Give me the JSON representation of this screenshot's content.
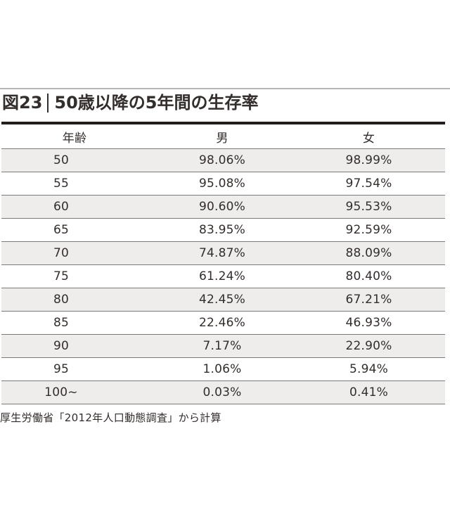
{
  "figure": {
    "label": "図23",
    "title": "50歳以降の5年間の生存率",
    "source": "厚生労働省「2012年人口動態調査」から計算"
  },
  "table": {
    "columns": [
      "年齢",
      "男",
      "女"
    ],
    "rows": [
      [
        "50",
        "98.06%",
        "98.99%"
      ],
      [
        "55",
        "95.08%",
        "97.54%"
      ],
      [
        "60",
        "90.60%",
        "95.53%"
      ],
      [
        "65",
        "83.95%",
        "92.59%"
      ],
      [
        "70",
        "74.87%",
        "88.09%"
      ],
      [
        "75",
        "61.24%",
        "80.40%"
      ],
      [
        "80",
        "42.45%",
        "67.21%"
      ],
      [
        "85",
        "22.46%",
        "46.93%"
      ],
      [
        "90",
        "7.17%",
        "22.90%"
      ],
      [
        "95",
        "1.06%",
        "5.94%"
      ],
      [
        "100~",
        "0.03%",
        "0.41%"
      ]
    ]
  },
  "colors": {
    "row_shade": "#eeedec",
    "heavy_rule": "#241e1c",
    "light_rule": "#b7b4b2",
    "row_divider": "#7e7a78",
    "text": "#332d2b"
  },
  "chart_data": {
    "type": "table",
    "title": "図23|50歳以降の5年間の生存率",
    "xlabel": "年齢",
    "unit": "%",
    "categories": [
      "50",
      "55",
      "60",
      "65",
      "70",
      "75",
      "80",
      "85",
      "90",
      "95",
      "100~"
    ],
    "series": [
      {
        "name": "男",
        "values": [
          98.06,
          95.08,
          90.6,
          83.95,
          74.87,
          61.24,
          42.45,
          22.46,
          7.17,
          1.06,
          0.03
        ]
      },
      {
        "name": "女",
        "values": [
          98.99,
          97.54,
          95.53,
          92.59,
          88.09,
          80.4,
          67.21,
          46.93,
          22.9,
          5.94,
          0.41
        ]
      }
    ],
    "source": "厚生労働省「2012年人口動態調査」から計算"
  }
}
